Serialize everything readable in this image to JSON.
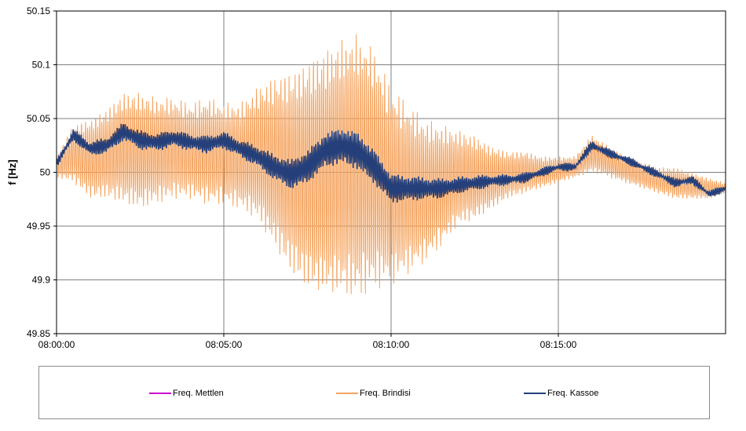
{
  "chart_data": {
    "type": "line",
    "title": "",
    "xlabel": "",
    "ylabel": "f [Hz]",
    "ylim": [
      49.85,
      50.15
    ],
    "yticks": [
      "49.85",
      "49.9",
      "49.95",
      "50",
      "50.05",
      "50.1",
      "50.15"
    ],
    "xlim": [
      "08:00:00",
      "08:20:00"
    ],
    "xticks": [
      "08:00:00",
      "08:05:00",
      "08:10:00",
      "08:15:00"
    ],
    "grid": true,
    "legend_position": "bottom",
    "series": [
      {
        "name": "Freq. Mettlen",
        "color": "#cc00cc",
        "x": [],
        "values": []
      },
      {
        "name": "Freq. Brindisi",
        "color": "#f4a460",
        "style": "oscillating envelope around mean",
        "x": [
          "08:00:00",
          "08:00:30",
          "08:01:00",
          "08:01:30",
          "08:02:00",
          "08:02:30",
          "08:03:00",
          "08:03:30",
          "08:04:00",
          "08:04:30",
          "08:05:00",
          "08:05:30",
          "08:06:00",
          "08:06:30",
          "08:07:00",
          "08:07:30",
          "08:08:00",
          "08:08:30",
          "08:09:00",
          "08:09:30",
          "08:10:00",
          "08:10:30",
          "08:11:00",
          "08:11:30",
          "08:12:00",
          "08:12:30",
          "08:13:00",
          "08:13:30",
          "08:14:00",
          "08:14:30",
          "08:15:00",
          "08:15:30",
          "08:16:00",
          "08:16:30",
          "08:17:00",
          "08:17:30",
          "08:18:00",
          "08:18:30",
          "08:19:00",
          "08:19:30",
          "08:20:00"
        ],
        "upper": [
          50.015,
          50.045,
          50.05,
          50.06,
          50.075,
          50.075,
          50.07,
          50.07,
          50.065,
          50.07,
          50.065,
          50.065,
          50.08,
          50.09,
          50.095,
          50.105,
          50.115,
          50.125,
          50.13,
          50.115,
          50.08,
          50.065,
          50.05,
          50.045,
          50.04,
          50.035,
          50.025,
          50.02,
          50.02,
          50.015,
          50.015,
          50.015,
          50.035,
          50.025,
          50.015,
          50.01,
          50.005,
          50.005,
          50.0,
          49.995,
          49.99
        ],
        "lower": [
          49.995,
          49.99,
          49.975,
          49.975,
          49.97,
          49.965,
          49.97,
          49.975,
          49.975,
          49.97,
          49.97,
          49.965,
          49.955,
          49.93,
          49.905,
          49.89,
          49.885,
          49.885,
          49.88,
          49.89,
          49.895,
          49.905,
          49.915,
          49.93,
          49.95,
          49.955,
          49.965,
          49.975,
          49.98,
          49.985,
          49.99,
          49.995,
          50.0,
          49.995,
          49.99,
          49.985,
          49.98,
          49.975,
          49.975,
          49.975,
          49.98
        ]
      },
      {
        "name": "Freq. Kassoe",
        "color": "#243f7a",
        "x": [
          "08:00:00",
          "08:00:30",
          "08:01:00",
          "08:01:30",
          "08:02:00",
          "08:02:30",
          "08:03:00",
          "08:03:30",
          "08:04:00",
          "08:04:30",
          "08:05:00",
          "08:05:30",
          "08:06:00",
          "08:06:30",
          "08:07:00",
          "08:07:30",
          "08:08:00",
          "08:08:30",
          "08:09:00",
          "08:09:30",
          "08:10:00",
          "08:10:30",
          "08:11:00",
          "08:11:30",
          "08:12:00",
          "08:12:30",
          "08:13:00",
          "08:13:30",
          "08:14:00",
          "08:14:30",
          "08:15:00",
          "08:15:30",
          "08:16:00",
          "08:16:30",
          "08:17:00",
          "08:17:30",
          "08:18:00",
          "08:18:30",
          "08:19:00",
          "08:19:30",
          "08:20:00"
        ],
        "values": [
          50.008,
          50.035,
          50.022,
          50.025,
          50.038,
          50.03,
          50.028,
          50.032,
          50.028,
          50.026,
          50.03,
          50.022,
          50.015,
          50.005,
          49.998,
          50.005,
          50.02,
          50.025,
          50.02,
          50.005,
          49.985,
          49.985,
          49.985,
          49.985,
          49.988,
          49.99,
          49.992,
          49.993,
          49.995,
          50.0,
          50.005,
          50.005,
          50.025,
          50.018,
          50.012,
          50.005,
          49.998,
          49.99,
          49.993,
          49.98,
          49.985
        ]
      }
    ]
  },
  "legend": {
    "items": [
      {
        "label": "Freq. Mettlen",
        "color": "#cc00cc"
      },
      {
        "label": "Freq. Brindisi",
        "color": "#f4a460"
      },
      {
        "label": "Freq. Kassoe",
        "color": "#243f7a"
      }
    ]
  }
}
